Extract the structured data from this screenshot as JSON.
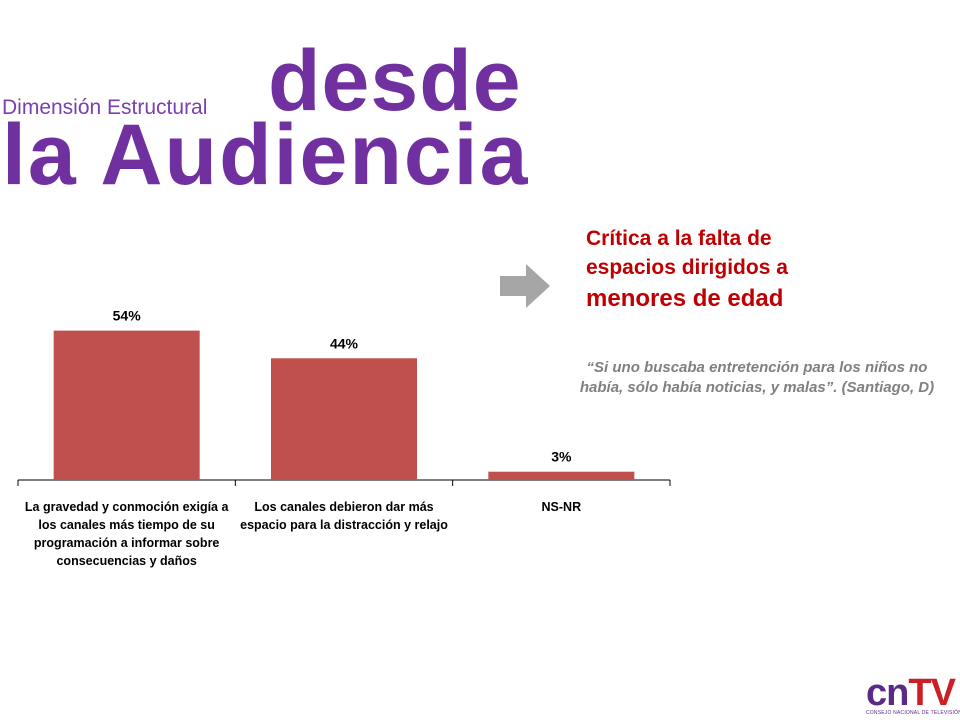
{
  "header": {
    "subtitle": "Dimensión Estructural",
    "title_line1": "desde",
    "title_line2": "la Audiencia"
  },
  "callout": {
    "line1": "Crítica a la falta de",
    "line2": "espacios dirigidos a",
    "line3": "menores de edad",
    "quote": "“Si uno buscaba entretención para los niños no había, sólo había noticias, y malas”. (Santiago, D)"
  },
  "logo": {
    "mark_cn": "cn",
    "mark_tv": "TV",
    "caption": "CONSEJO NACIONAL DE TELEVISIÓN"
  },
  "colors": {
    "title_purple": "#7030a0",
    "accent_red": "#c00000",
    "bar_red": "#c0504d",
    "arrow_gray": "#a6a6a6",
    "quote_gray": "#808080"
  },
  "chart_data": {
    "type": "bar",
    "categories": [
      "La gravedad y conmoción exigía a los canales más tiempo de su programación a informar sobre consecuencias y daños",
      "Los canales debieron dar más espacio para la distracción y relajo",
      "NS-NR"
    ],
    "category_lines": [
      [
        "La gravedad y conmoción exigía a",
        "los canales más tiempo de su",
        "programación a informar sobre",
        "consecuencias y daños"
      ],
      [
        "Los canales debieron dar más",
        "espacio para la distracción y relajo"
      ],
      [
        "NS-NR"
      ]
    ],
    "values": [
      54,
      44,
      3
    ],
    "data_labels": [
      "54%",
      "44%",
      "3%"
    ],
    "ylim": [
      0,
      60
    ],
    "grid": false,
    "legend": "none",
    "bar_color": "#c0504d",
    "title": "",
    "xlabel": "",
    "ylabel": ""
  }
}
